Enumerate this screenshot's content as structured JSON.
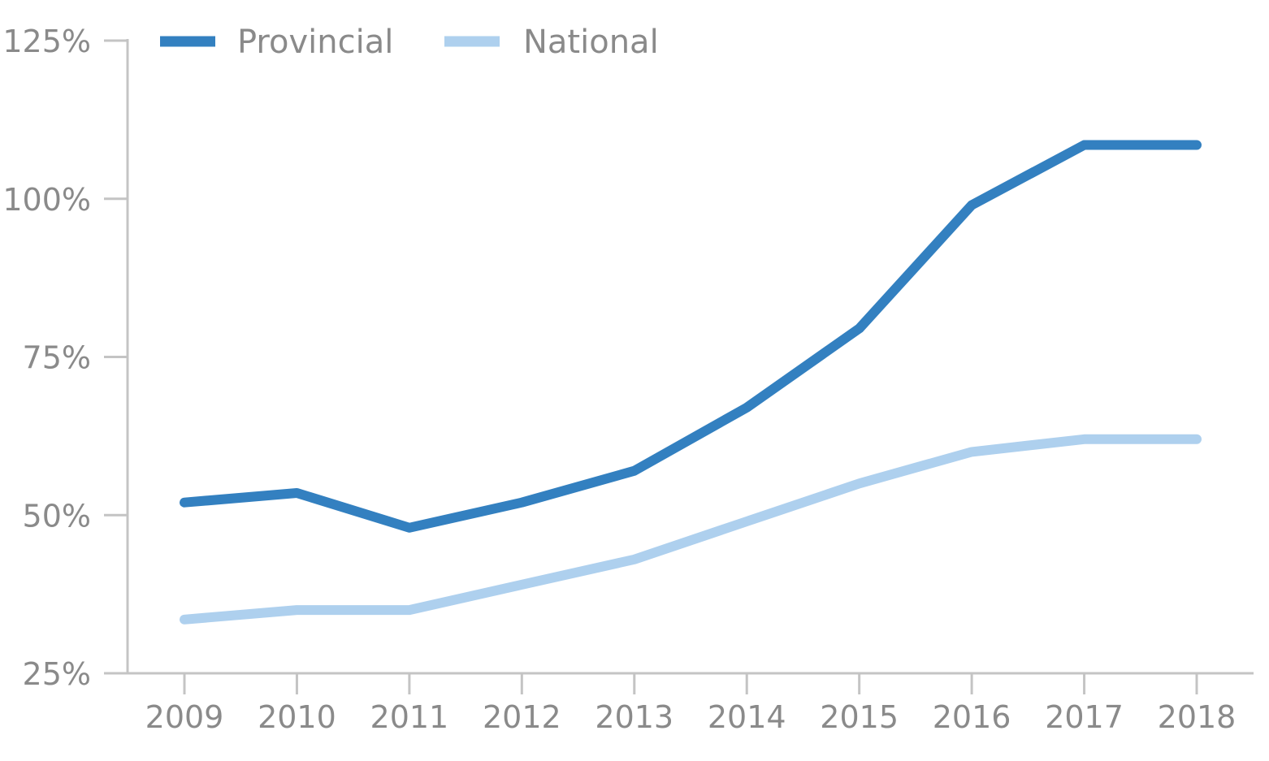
{
  "chart_data": {
    "type": "line",
    "title": "",
    "xlabel": "",
    "ylabel": "",
    "categories": [
      "2009",
      "2010",
      "2011",
      "2012",
      "2013",
      "2014",
      "2015",
      "2016",
      "2017",
      "2018"
    ],
    "series": [
      {
        "name": "Provincial",
        "color": "#3380c0",
        "values": [
          52,
          53.5,
          48,
          52,
          57,
          67,
          79.5,
          99,
          108.5,
          108.5
        ]
      },
      {
        "name": "National",
        "color": "#aed0ee",
        "values": [
          33.5,
          35,
          35,
          39,
          43,
          49,
          55,
          60,
          62,
          62
        ]
      }
    ],
    "ylim": [
      25,
      125
    ],
    "yticks": [
      25,
      50,
      75,
      100,
      125
    ],
    "ytick_labels": [
      "25%",
      "50%",
      "75%",
      "100%",
      "125%"
    ],
    "grid": false,
    "legend_position": "top-left"
  }
}
